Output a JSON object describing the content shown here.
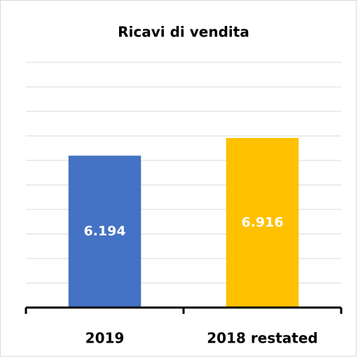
{
  "chart_data": {
    "type": "bar",
    "title": "Ricavi di vendita",
    "categories": [
      "2019",
      "2018 restated"
    ],
    "values": [
      6194,
      6916
    ],
    "value_labels": [
      "6.194",
      "6.916"
    ],
    "colors": [
      "#4472c4",
      "#ffc000"
    ],
    "ylim": [
      0,
      10000
    ],
    "yticks": [
      0,
      1000,
      2000,
      3000,
      4000,
      5000,
      6000,
      7000,
      8000,
      9000,
      10000
    ],
    "grid": true
  }
}
